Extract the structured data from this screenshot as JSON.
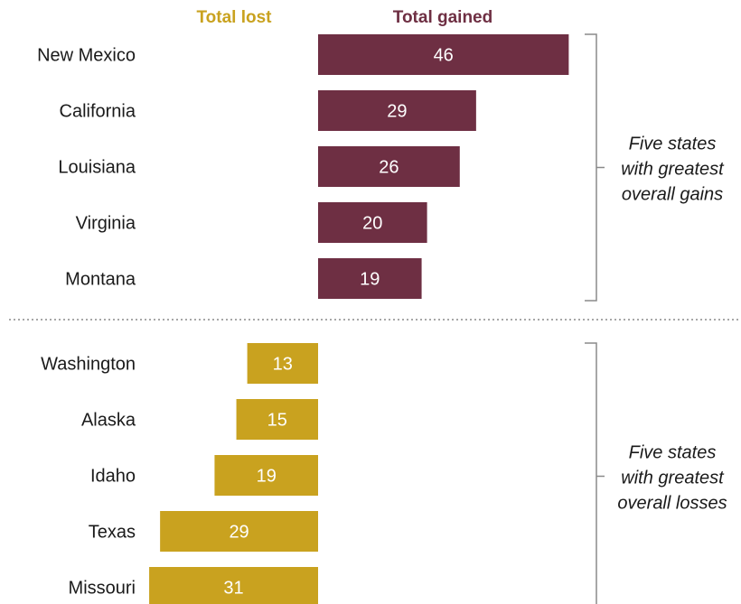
{
  "chart_data": {
    "type": "bar",
    "legend": {
      "lost_label": "Total lost",
      "gained_label": "Total gained"
    },
    "colors": {
      "gained": "#6e2f43",
      "lost": "#c9a21f",
      "bracket": "#8a8a8a",
      "divider": "#8a8a8a"
    },
    "groups": [
      {
        "series": "gained",
        "note_lines": [
          "Five states",
          "with greatest",
          "overall gains"
        ],
        "categories": [
          "New Mexico",
          "California",
          "Louisiana",
          "Virginia",
          "Montana"
        ],
        "values": [
          46,
          29,
          26,
          20,
          19
        ]
      },
      {
        "series": "lost",
        "note_lines": [
          "Five states",
          "with greatest",
          "overall losses"
        ],
        "categories": [
          "Washington",
          "Alaska",
          "Idaho",
          "Texas",
          "Missouri"
        ],
        "values": [
          13,
          15,
          19,
          29,
          31
        ]
      }
    ]
  }
}
